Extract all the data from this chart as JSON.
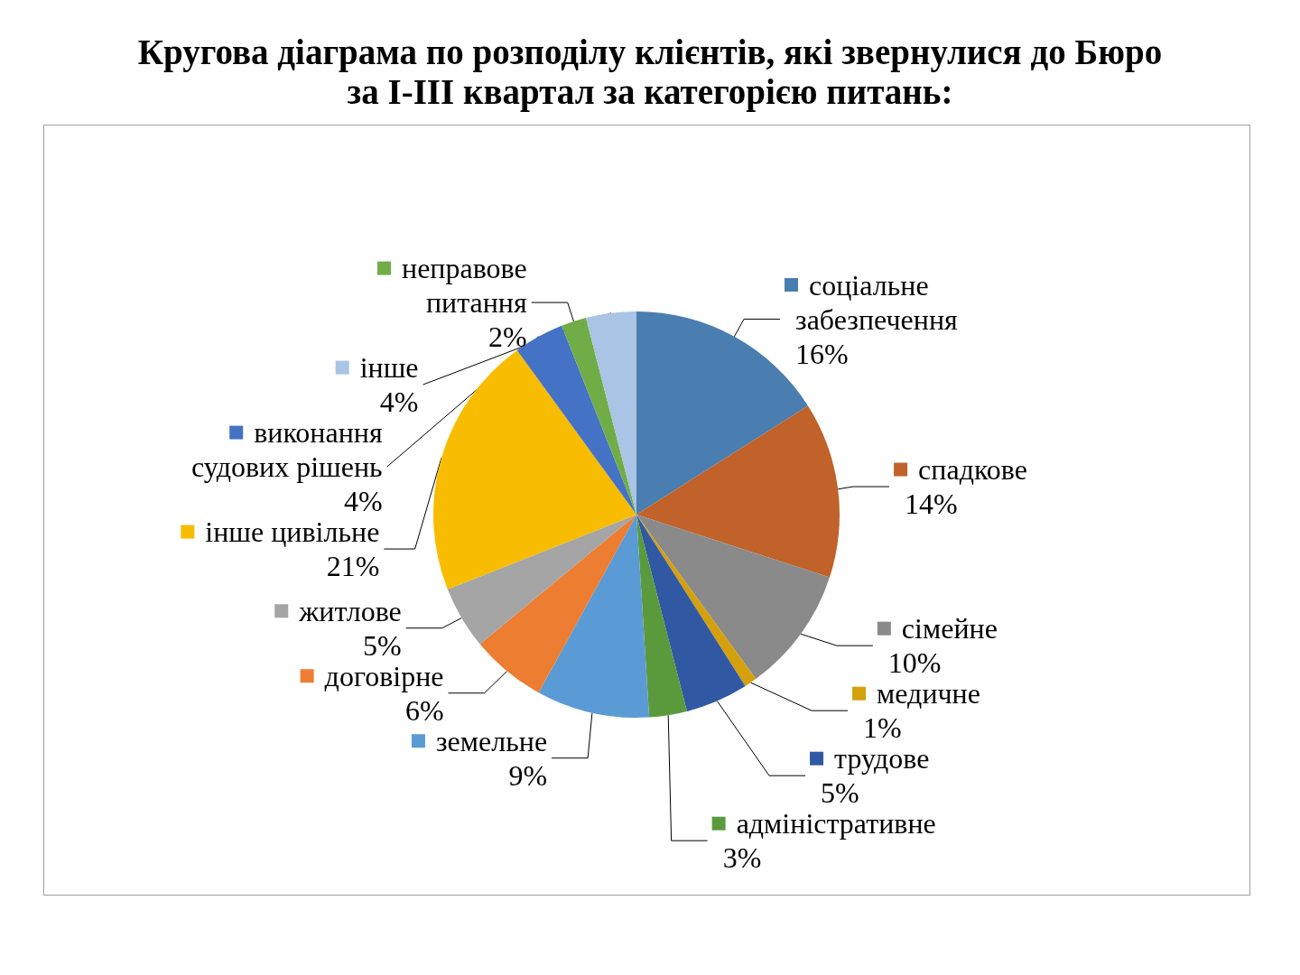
{
  "chart_data": {
    "type": "pie",
    "title": "Кругова діаграма по розподілу клієнтів, які звернулися до Бюро за І-ІІІ квартал за категорією питань:",
    "categories": [
      "соціальне забезпечення",
      "спадкове",
      "сімейне",
      "медичне",
      "трудове",
      "адміністративне",
      "земельне",
      "договірне",
      "житлове",
      "інше цивільне",
      "виконання судових рішень",
      "неправове питання",
      "інше"
    ],
    "values": [
      16,
      14,
      10,
      1,
      5,
      3,
      9,
      6,
      5,
      21,
      4,
      2,
      4
    ],
    "value_labels": [
      "16%",
      "14%",
      "10%",
      "1%",
      "5%",
      "3%",
      "9%",
      "6%",
      "5%",
      "21%",
      "4%",
      "2%",
      "4%"
    ],
    "colors": [
      "#4a7eb0",
      "#c0622a",
      "#8a8a8a",
      "#d4a00c",
      "#3158a3",
      "#5a9a3c",
      "#5b9bd5",
      "#ed7d31",
      "#a5a5a5",
      "#f8bc00",
      "#4472c4",
      "#70ad47",
      "#a9c4e4"
    ],
    "legend": true
  }
}
